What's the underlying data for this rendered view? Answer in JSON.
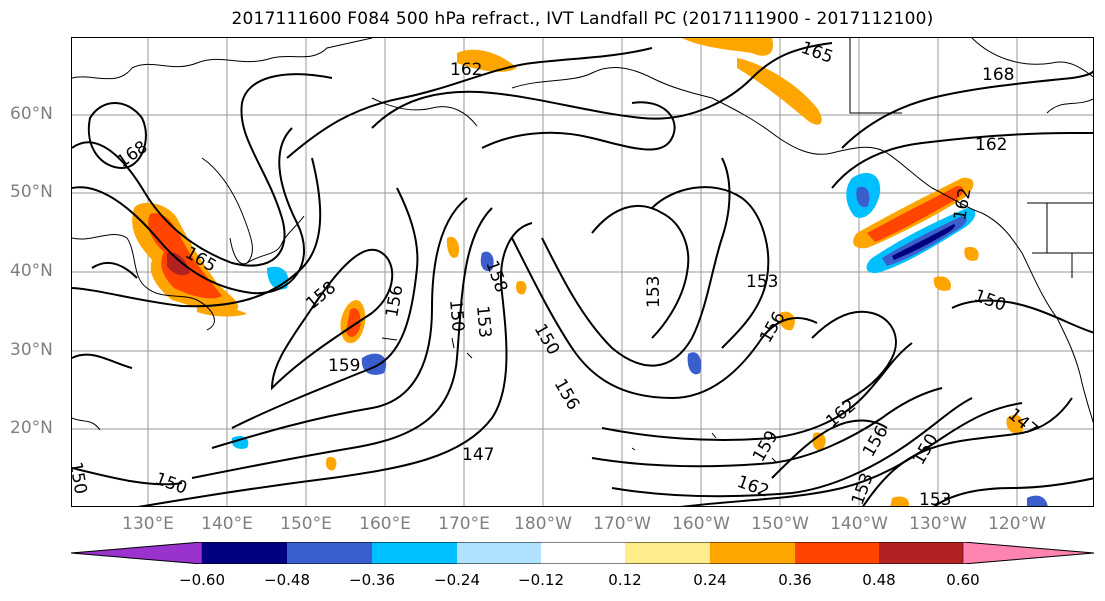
{
  "title": "2017111600 F084 500 hPa refract., IVT Landfall PC (2017111900 - 2017112100)",
  "map": {
    "lat_labels": [
      "60°N",
      "50°N",
      "40°N",
      "30°N",
      "20°N"
    ],
    "lon_labels": [
      "130°E",
      "140°E",
      "150°E",
      "160°E",
      "170°E",
      "180°W",
      "170°W",
      "160°W",
      "150°W",
      "140°W",
      "130°W",
      "120°W"
    ],
    "contour_labels": [
      "162",
      "165",
      "168",
      "162",
      "168",
      "165",
      "158",
      "156",
      "150",
      "153",
      "158",
      "159",
      "150",
      "156",
      "153",
      "153",
      "150",
      "156",
      "162",
      "159",
      "162",
      "156",
      "150",
      "153",
      "147",
      "147",
      "150",
      "153",
      "162",
      "150"
    ]
  },
  "colorbar": {
    "colors": [
      "#9a32cd",
      "#000080",
      "#3a5fcd",
      "#00bfff",
      "#b0e2ff",
      "#ffffff",
      "#ffec8b",
      "#ffa500",
      "#ff4500",
      "#b22222",
      "#ff83b0"
    ],
    "ticks": [
      "−0.60",
      "−0.48",
      "−0.36",
      "−0.24",
      "−0.12",
      "0.12",
      "0.24",
      "0.36",
      "0.48",
      "0.60"
    ]
  }
}
